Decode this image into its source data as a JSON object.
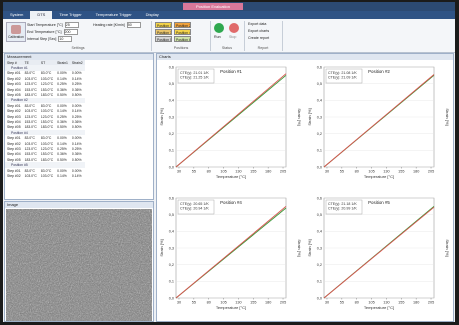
{
  "window_title": "Position Evaluation",
  "tabs": [
    "System",
    "DTS",
    "Time Trigger",
    "Temperature Trigger",
    "Display"
  ],
  "ribbon": {
    "calibration": "Calibration",
    "fields": [
      {
        "label": "Start Temperature [°C]",
        "value": "25"
      },
      {
        "label": "End Temperature [°C]",
        "value": "200"
      },
      {
        "label": "Interval Step [Sec]",
        "value": "10"
      }
    ],
    "heating": {
      "label": "Heating rate [K/min]",
      "value": "50"
    },
    "settings_group": "Settings",
    "positions": [
      {
        "label": "Position 1",
        "color": "#f3d34a"
      },
      {
        "label": "Position 2",
        "color": "#f0a23c"
      },
      {
        "label": "Position 3",
        "color": "#e9c46a"
      },
      {
        "label": "Position 4",
        "color": "#f3d34a"
      },
      {
        "label": "Position 5",
        "color": "#d4d4d4"
      },
      {
        "label": "Position 6",
        "color": "#cfe3a8"
      }
    ],
    "positions_group": "Positions",
    "run": "Run",
    "stop": "Stop",
    "status_group": "Status",
    "report": [
      "Export data",
      "Export charts",
      "Create report"
    ],
    "report_group": "Report"
  },
  "measurement": {
    "title": "Measurement",
    "columns": [
      "Step #",
      "TE",
      "ST",
      "Strain1",
      "Strain2"
    ],
    "groups": [
      {
        "name": "Position #1",
        "rows": [
          [
            "Step #01",
            "83.0°C",
            "83.0°C",
            "0.00%",
            "0.00%"
          ],
          [
            "Step #02",
            "103.0°C",
            "103.0°C",
            "0.14%",
            "0.14%"
          ],
          [
            "Step #03",
            "123.0°C",
            "123.0°C",
            "0.25%",
            "0.25%"
          ],
          [
            "Step #04",
            "153.0°C",
            "153.0°C",
            "0.36%",
            "0.36%"
          ],
          [
            "Step #05",
            "183.0°C",
            "183.0°C",
            "0.50%",
            "0.50%"
          ]
        ]
      },
      {
        "name": "Position #2",
        "rows": [
          [
            "Step #01",
            "83.0°C",
            "83.0°C",
            "0.00%",
            "0.00%"
          ],
          [
            "Step #02",
            "103.0°C",
            "103.0°C",
            "0.14%",
            "0.14%"
          ],
          [
            "Step #03",
            "123.0°C",
            "123.0°C",
            "0.25%",
            "0.25%"
          ],
          [
            "Step #04",
            "153.0°C",
            "153.0°C",
            "0.36%",
            "0.36%"
          ],
          [
            "Step #05",
            "183.0°C",
            "183.0°C",
            "0.50%",
            "0.50%"
          ]
        ]
      },
      {
        "name": "Position #4",
        "rows": [
          [
            "Step #01",
            "83.0°C",
            "83.0°C",
            "0.00%",
            "0.00%"
          ],
          [
            "Step #02",
            "103.0°C",
            "103.0°C",
            "0.14%",
            "0.14%"
          ],
          [
            "Step #03",
            "123.0°C",
            "123.0°C",
            "0.25%",
            "0.25%"
          ],
          [
            "Step #04",
            "153.0°C",
            "153.0°C",
            "0.36%",
            "0.36%"
          ],
          [
            "Step #05",
            "183.0°C",
            "183.0°C",
            "0.50%",
            "0.50%"
          ]
        ]
      },
      {
        "name": "Position #5",
        "rows": [
          [
            "Step #01",
            "83.0°C",
            "83.0°C",
            "0.00%",
            "0.00%"
          ],
          [
            "Step #02",
            "103.0°C",
            "103.0°C",
            "0.14%",
            "0.14%"
          ]
        ]
      }
    ]
  },
  "image_title": "Image",
  "charts_title": "Charts",
  "chart_data": [
    {
      "type": "line",
      "title": "Position #1",
      "x_label": "Temperature [°C]",
      "y_label": "Strain [%]",
      "x": [
        25,
        210
      ],
      "series": [
        {
          "name": "CTE(y): 21.01 1/K",
          "color": "#3a9a3a",
          "values": [
            0,
            0.55
          ]
        },
        {
          "name": "CTE(y): 21.25 1/K",
          "color": "#d9534f",
          "values": [
            0,
            0.56
          ]
        }
      ],
      "xlim": [
        25,
        210
      ],
      "ylim": [
        0,
        0.6
      ],
      "xticks": [
        30,
        55,
        80,
        105,
        130,
        155,
        180,
        205
      ],
      "yticks": [
        {
          "value": 0,
          "label": "0,0"
        },
        {
          "value": 0.1,
          "label": "0,1"
        },
        {
          "value": 0.2,
          "label": "0,2"
        },
        {
          "value": 0.3,
          "label": "0,3"
        },
        {
          "value": 0.4,
          "label": "0,4"
        },
        {
          "value": 0.5,
          "label": "0,5"
        },
        {
          "value": 0.6,
          "label": "0,6"
        }
      ]
    },
    {
      "type": "line",
      "title": "Position #2",
      "x_label": "Temperature [°C]",
      "y_label": "Strain [%]",
      "x": [
        25,
        210
      ],
      "series": [
        {
          "name": "CTE(y): 21.08 1/K",
          "color": "#3a9a3a",
          "values": [
            0,
            0.55
          ]
        },
        {
          "name": "CTE(y): 21.09 1/K",
          "color": "#d9534f",
          "values": [
            0,
            0.555
          ]
        }
      ],
      "xlim": [
        25,
        210
      ],
      "ylim": [
        0,
        0.6
      ],
      "xticks": [
        30,
        55,
        80,
        105,
        130,
        155,
        180,
        205
      ],
      "yticks": [
        {
          "value": 0,
          "label": "0,0"
        },
        {
          "value": 0.1,
          "label": "0,1"
        },
        {
          "value": 0.2,
          "label": "0,2"
        },
        {
          "value": 0.3,
          "label": "0,3"
        },
        {
          "value": 0.4,
          "label": "0,4"
        },
        {
          "value": 0.5,
          "label": "0,5"
        },
        {
          "value": 0.6,
          "label": "0,6"
        }
      ]
    },
    {
      "type": "line",
      "title": "Position #4",
      "x_label": "Temperature [°C]",
      "y_label": "Strain [%]",
      "x": [
        25,
        210
      ],
      "series": [
        {
          "name": "CTE(y): 20.65 1/K",
          "color": "#3a9a3a",
          "values": [
            0,
            0.54
          ]
        },
        {
          "name": "CTE(y): 20.94 1/K",
          "color": "#d9534f",
          "values": [
            0,
            0.55
          ]
        }
      ],
      "xlim": [
        25,
        210
      ],
      "ylim": [
        0,
        0.6
      ],
      "xticks": [
        30,
        55,
        80,
        105,
        130,
        155,
        180,
        205
      ],
      "yticks": [
        {
          "value": 0,
          "label": "0,0"
        },
        {
          "value": 0.1,
          "label": "0,1"
        },
        {
          "value": 0.2,
          "label": "0,2"
        },
        {
          "value": 0.3,
          "label": "0,3"
        },
        {
          "value": 0.4,
          "label": "0,4"
        },
        {
          "value": 0.5,
          "label": "0,5"
        },
        {
          "value": 0.6,
          "label": "0,6"
        }
      ]
    },
    {
      "type": "line",
      "title": "Position #5",
      "x_label": "Temperature [°C]",
      "y_label": "Strain [%]",
      "x": [
        25,
        210
      ],
      "series": [
        {
          "name": "CTE(y): 21.18 1/K",
          "color": "#3a9a3a",
          "values": [
            0,
            0.55
          ]
        },
        {
          "name": "CTE(y): 20.99 1/K",
          "color": "#d9534f",
          "values": [
            0,
            0.545
          ]
        }
      ],
      "xlim": [
        25,
        210
      ],
      "ylim": [
        0,
        0.6
      ],
      "xticks": [
        30,
        55,
        80,
        105,
        130,
        155,
        180,
        205
      ],
      "yticks": [
        {
          "value": 0,
          "label": "0,0"
        },
        {
          "value": 0.1,
          "label": "0,1"
        },
        {
          "value": 0.2,
          "label": "0,2"
        },
        {
          "value": 0.3,
          "label": "0,3"
        },
        {
          "value": 0.4,
          "label": "0,4"
        },
        {
          "value": 0.5,
          "label": "0,5"
        },
        {
          "value": 0.6,
          "label": "0,6"
        }
      ]
    }
  ]
}
